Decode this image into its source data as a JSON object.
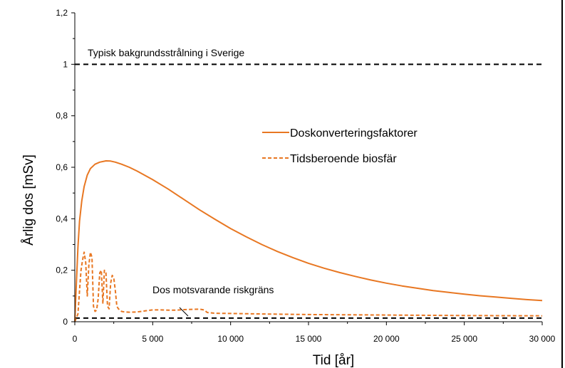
{
  "chart_data": {
    "type": "line",
    "title": "",
    "xlabel": "Tid [år]",
    "ylabel": "Årlig dos [mSv]",
    "xlim": [
      0,
      30000
    ],
    "ylim": [
      0,
      1.2
    ],
    "xticks": [
      0,
      5000,
      10000,
      15000,
      20000,
      25000,
      30000
    ],
    "xtick_labels": [
      "0",
      "5 000",
      "10 000",
      "15 000",
      "20 000",
      "25 000",
      "30 000"
    ],
    "yticks": [
      0,
      0.2,
      0.4,
      0.6,
      0.8,
      1.0,
      1.2
    ],
    "ytick_labels": [
      "0",
      "0,2",
      "0,4",
      "0,6",
      "0,8",
      "1",
      "1,2"
    ],
    "grid": false,
    "legend_position": "center-right",
    "series": [
      {
        "name": "Doskonverteringsfaktorer",
        "style": "solid",
        "color": "#E87722",
        "x": [
          0,
          100,
          200,
          300,
          450,
          600,
          800,
          1000,
          1300,
          1600,
          2000,
          2300,
          2600,
          3000,
          3500,
          4000,
          5000,
          6000,
          7000,
          8000,
          9000,
          10000,
          11000,
          12000,
          13000,
          14000,
          15000,
          16000,
          17000,
          18000,
          19000,
          20000,
          21000,
          22000,
          23000,
          24000,
          25000,
          26000,
          27000,
          28000,
          29000,
          30000
        ],
        "y": [
          0,
          0.15,
          0.29,
          0.39,
          0.47,
          0.525,
          0.57,
          0.595,
          0.612,
          0.62,
          0.625,
          0.624,
          0.62,
          0.612,
          0.6,
          0.585,
          0.552,
          0.515,
          0.475,
          0.435,
          0.398,
          0.362,
          0.33,
          0.3,
          0.273,
          0.249,
          0.227,
          0.208,
          0.191,
          0.176,
          0.162,
          0.15,
          0.139,
          0.13,
          0.121,
          0.114,
          0.107,
          0.101,
          0.096,
          0.091,
          0.086,
          0.082
        ]
      },
      {
        "name": "Tidsberoende biosfär",
        "style": "dashed",
        "color": "#E87722",
        "x": [
          0,
          200,
          300,
          400,
          500,
          600,
          700,
          800,
          900,
          1000,
          1100,
          1200,
          1300,
          1400,
          1500,
          1600,
          1700,
          1800,
          1900,
          2000,
          2100,
          2200,
          2300,
          2400,
          2500,
          2600,
          2700,
          2800,
          2900,
          3000,
          3200,
          3500,
          4000,
          4500,
          5000,
          5500,
          6000,
          6500,
          7000,
          7500,
          8000,
          8300,
          8500,
          9000,
          10000,
          12000,
          15000,
          20000,
          25000,
          30000
        ],
        "y": [
          0,
          0.03,
          0.12,
          0.2,
          0.24,
          0.27,
          0.23,
          0.1,
          0.22,
          0.27,
          0.25,
          0.06,
          0.04,
          0.045,
          0.09,
          0.19,
          0.2,
          0.07,
          0.2,
          0.19,
          0.06,
          0.05,
          0.15,
          0.18,
          0.17,
          0.12,
          0.06,
          0.05,
          0.045,
          0.04,
          0.038,
          0.037,
          0.038,
          0.042,
          0.046,
          0.046,
          0.045,
          0.045,
          0.047,
          0.048,
          0.049,
          0.046,
          0.036,
          0.033,
          0.032,
          0.03,
          0.028,
          0.026,
          0.024,
          0.023
        ]
      }
    ],
    "reference_lines": [
      {
        "y": 1.0,
        "style": "dashed",
        "color": "#000000",
        "label": "Typisk bakgrundsstrålning i Sverige"
      },
      {
        "y": 0.014,
        "style": "dashed",
        "color": "#000000",
        "label": "Dos motsvarande riskgräns"
      }
    ]
  }
}
